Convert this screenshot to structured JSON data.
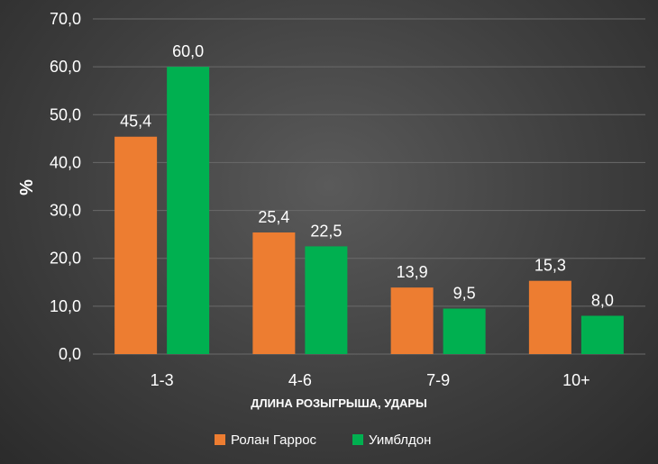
{
  "chart_data": {
    "type": "bar",
    "title": "",
    "categories": [
      "1-3",
      "4-6",
      "7-9",
      "10+"
    ],
    "series": [
      {
        "name": "Ролан Гаррос",
        "color": "#ed7d31",
        "values": [
          45.4,
          25.4,
          13.9,
          15.3
        ],
        "labels": [
          "45,4",
          "25,4",
          "13,9",
          "15,3"
        ]
      },
      {
        "name": "Уимблдон",
        "color": "#00b050",
        "values": [
          60.0,
          22.5,
          9.5,
          8.0
        ],
        "labels": [
          "60,0",
          "22,5",
          "9,5",
          "8,0"
        ]
      }
    ],
    "xlabel": "ДЛИНА РОЗЫГРЫША, УДАРЫ",
    "ylabel": "%",
    "ylim": [
      0,
      70
    ],
    "yticks": [
      0,
      10,
      20,
      30,
      40,
      50,
      60,
      70
    ],
    "ytick_labels": [
      "0,0",
      "10,0",
      "20,0",
      "30,0",
      "40,0",
      "50,0",
      "60,0",
      "70,0"
    ],
    "grid": true,
    "legend_position": "bottom"
  }
}
